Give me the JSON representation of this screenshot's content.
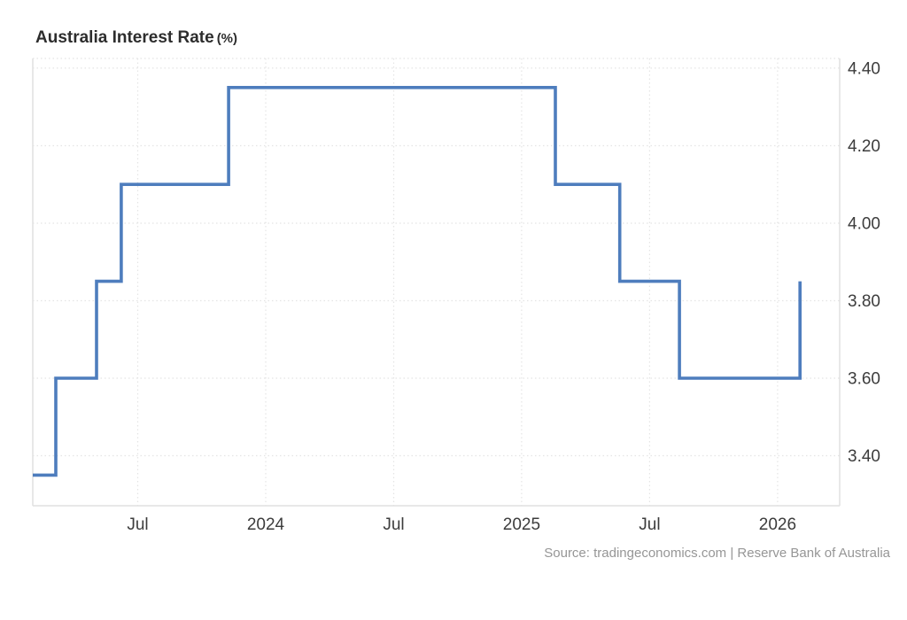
{
  "header": {
    "title": "Australia Interest Rate",
    "unit": "(%)"
  },
  "footer": {
    "source": "Source: tradingeconomics.com | Reserve Bank of Australia"
  },
  "chart_data": {
    "type": "line",
    "subtype": "step-after",
    "title": "Australia Interest Rate (%)",
    "xlabel": "",
    "ylabel": "",
    "legend": "none",
    "grid": {
      "on": true,
      "style": "dotted",
      "color": "#e4e4e4"
    },
    "border_color": "#e1e1e1",
    "axis_text_color": "#3c3c3c",
    "y_ticks": [
      "3.40",
      "3.60",
      "3.80",
      "4.00",
      "4.20",
      "4.40"
    ],
    "ylim": [
      3.271,
      4.425
    ],
    "x_unit": "months_since_2023_01",
    "x_domain_months": [
      1.08,
      38.91
    ],
    "x_ticks": [
      {
        "label": "Jul",
        "m": 6
      },
      {
        "label": "2024",
        "m": 12
      },
      {
        "label": "Jul",
        "m": 18
      },
      {
        "label": "2025",
        "m": 24
      },
      {
        "label": "Jul",
        "m": 30
      },
      {
        "label": "2026",
        "m": 36
      }
    ],
    "series": [
      {
        "name": "Australia Interest Rate",
        "color": "#4e7dbd",
        "line_width": 3.6,
        "points": [
          {
            "date": "2023-02",
            "m": 1.08,
            "value": 3.35
          },
          {
            "date": "2023-03",
            "m": 2.16,
            "value": 3.6
          },
          {
            "date": "2023-05",
            "m": 4.07,
            "value": 3.85
          },
          {
            "date": "2023-06",
            "m": 5.23,
            "value": 4.1
          },
          {
            "date": "2023-11",
            "m": 10.26,
            "value": 4.35
          },
          {
            "date": "2025-02",
            "m": 25.58,
            "value": 4.1
          },
          {
            "date": "2025-05",
            "m": 28.6,
            "value": 3.85
          },
          {
            "date": "2025-08",
            "m": 31.4,
            "value": 3.6
          },
          {
            "date": "2026-02",
            "m": 37.05,
            "value": 3.85
          }
        ]
      }
    ]
  }
}
